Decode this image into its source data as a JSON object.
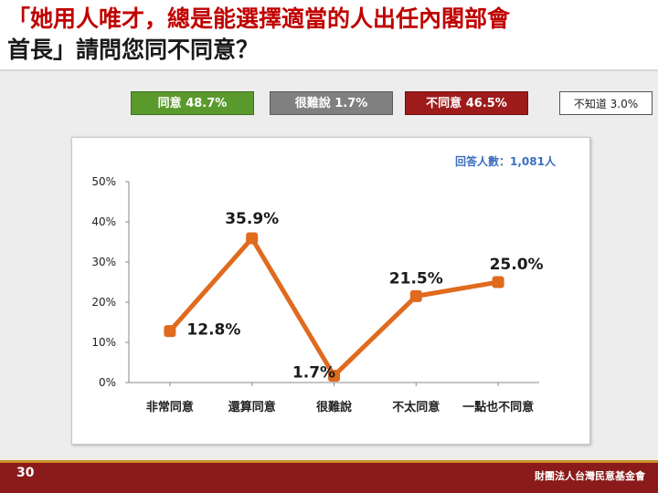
{
  "title": {
    "line1": "「她用人唯才，總是能選擇適當的人出任內閣部會",
    "line2": "首長」請問您同不同意？"
  },
  "summary": {
    "agree": "同意 48.7%",
    "hard_to_say": "很難說 1.7%",
    "disagree": "不同意 46.5%",
    "unknown": "不知道 3.0%"
  },
  "colors": {
    "agree": "#5a9a2c",
    "hard_to_say": "#808080",
    "disagree": "#9e1b1b",
    "line": "#e06a1e",
    "footer": "#8b1a1a"
  },
  "chart_data": {
    "type": "line",
    "categories": [
      "非常同意",
      "還算同意",
      "很難說",
      "不太同意",
      "一點也不同意"
    ],
    "values": [
      12.8,
      35.9,
      1.7,
      21.5,
      25.0
    ],
    "data_labels": [
      "12.8%",
      "35.9%",
      "1.7%",
      "21.5%",
      "25.0%"
    ],
    "yticks": [
      "0%",
      "10%",
      "20%",
      "30%",
      "40%",
      "50%"
    ],
    "ylim": [
      0,
      50
    ],
    "annotation": "回答人數：1,081人",
    "grid": false
  },
  "footer": {
    "page": "30",
    "org": "財團法人台灣民意基金會"
  }
}
